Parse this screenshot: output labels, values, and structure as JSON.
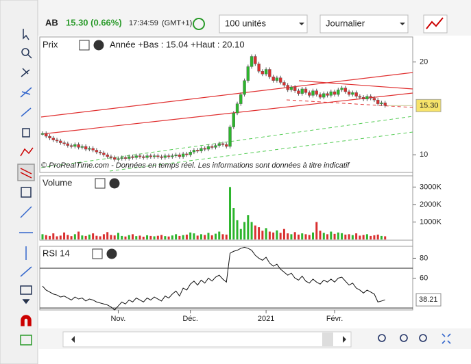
{
  "header": {
    "symbol": "AB",
    "change": "15.30 (0.66%)",
    "time": "17:34:59",
    "timezone": "(GMT+1)",
    "quantity": "100 unités",
    "period": "Journalier"
  },
  "price": {
    "label": "Prix",
    "info": "Année +Bas : 15.04 +Haut : 20.10",
    "copyright": "© ProRealTime.com - Données en temps réel. Les informations sont données à titre indicatif",
    "ylim": [
      8.1,
      22.7
    ],
    "yticks": [
      10,
      20
    ],
    "last": 15.3,
    "last_label": "15.30",
    "closes": [
      12.3,
      12.0,
      11.8,
      11.6,
      11.5,
      11.3,
      11.2,
      11.0,
      10.9,
      11.1,
      10.8,
      10.9,
      10.6,
      10.7,
      10.5,
      10.3,
      10.2,
      10.0,
      9.8,
      9.7,
      9.5,
      9.6,
      9.7,
      9.6,
      9.8,
      9.7,
      9.9,
      9.8,
      9.7,
      9.9,
      9.8,
      9.9,
      9.8,
      9.7,
      9.9,
      9.8,
      9.9,
      10.0,
      9.8,
      10.1,
      10.0,
      10.3,
      10.5,
      10.4,
      10.7,
      10.6,
      10.9,
      10.8,
      11.0,
      11.2,
      11.1,
      10.9,
      13.0,
      14.5,
      15.5,
      16.5,
      18.0,
      19.5,
      20.6,
      19.8,
      19.0,
      18.7,
      19.2,
      18.4,
      18.0,
      18.3,
      17.8,
      17.5,
      17.0,
      17.3,
      16.9,
      16.6,
      17.1,
      16.7,
      16.4,
      16.9,
      16.5,
      16.2,
      16.6,
      16.4,
      16.8,
      16.5,
      17.0,
      17.2,
      16.8,
      16.5,
      16.7,
      16.3,
      16.2,
      16.0,
      16.3,
      16.1,
      15.9,
      15.5,
      15.6,
      15.3
    ]
  },
  "volume": {
    "label": "Volume",
    "ylim": [
      0,
      3640000
    ],
    "yticks": [
      {
        "value": 1000000,
        "label": "1000K"
      },
      {
        "value": 2000000,
        "label": "2000K"
      },
      {
        "value": 3000000,
        "label": "3000K"
      }
    ],
    "values": [
      300000,
      250000,
      200000,
      350000,
      180000,
      220000,
      400000,
      260000,
      190000,
      300000,
      450000,
      230000,
      200000,
      280000,
      350000,
      210000,
      180000,
      300000,
      420000,
      260000,
      230000,
      380000,
      200000,
      170000,
      250000,
      300000,
      190000,
      220000,
      160000,
      240000,
      200000,
      180000,
      210000,
      260000,
      190000,
      170000,
      230000,
      300000,
      200000,
      250000,
      280000,
      400000,
      350000,
      220000,
      300000,
      260000,
      380000,
      240000,
      330000,
      450000,
      300000,
      280000,
      3000000,
      1800000,
      1100000,
      600000,
      1000000,
      1400000,
      1000000,
      800000,
      700000,
      500000,
      650000,
      450000,
      400000,
      520000,
      380000,
      600000,
      350000,
      300000,
      420000,
      280000,
      350000,
      300000,
      260000,
      400000,
      1000000,
      500000,
      380000,
      300000,
      450000,
      320000,
      400000,
      360000,
      280000,
      300000,
      250000,
      350000,
      220000,
      260000,
      300000,
      200000,
      240000,
      280000,
      200000,
      180000
    ]
  },
  "rsi": {
    "label": "RSI 14",
    "ylim": [
      28,
      92
    ],
    "yticks": [
      60,
      80
    ],
    "levels": [
      30,
      70
    ],
    "last_label": "38.21",
    "values": [
      52,
      48,
      46,
      44,
      43,
      41,
      42,
      40,
      38,
      41,
      39,
      40,
      37,
      39,
      38,
      36,
      35,
      34,
      33,
      31,
      28,
      32,
      36,
      34,
      38,
      36,
      40,
      38,
      36,
      40,
      38,
      41,
      39,
      37,
      42,
      40,
      44,
      47,
      42,
      50,
      48,
      54,
      57,
      53,
      58,
      55,
      60,
      57,
      61,
      63,
      59,
      56,
      85,
      87,
      88,
      90,
      91,
      90,
      88,
      83,
      80,
      78,
      81,
      75,
      72,
      74,
      69,
      66,
      63,
      65,
      60,
      58,
      62,
      57,
      55,
      59,
      56,
      54,
      58,
      56,
      59,
      56,
      60,
      61,
      57,
      53,
      55,
      50,
      48,
      45,
      48,
      46,
      44,
      36,
      37,
      38.21
    ]
  },
  "x_labels": [
    {
      "index": 21,
      "label": "Nov."
    },
    {
      "index": 41,
      "label": "Déc."
    },
    {
      "index": 62,
      "label": "2021"
    },
    {
      "index": 81,
      "label": "Févr."
    }
  ]
}
